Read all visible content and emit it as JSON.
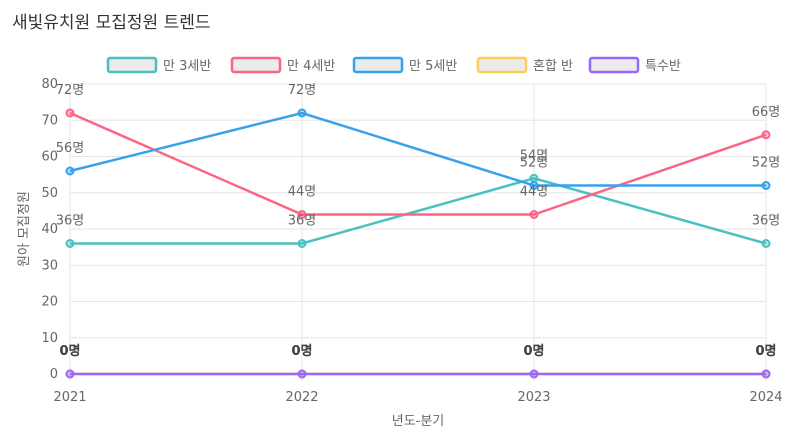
{
  "chart_data": {
    "type": "line",
    "title": "새빛유치원 모집정원 트렌드",
    "xlabel": "년도-분기",
    "ylabel": "원아 모집정원",
    "categories": [
      "2021",
      "2022",
      "2023",
      "2024"
    ],
    "ylim": [
      0,
      80
    ],
    "yticks": [
      0,
      10,
      20,
      30,
      40,
      50,
      60,
      70,
      80
    ],
    "label_suffix": "명",
    "series": [
      {
        "name": "만 3세반",
        "color": "#4bc0c0",
        "values": [
          36,
          36,
          54,
          36
        ]
      },
      {
        "name": "만 4세반",
        "color": "#ff6384",
        "values": [
          72,
          44,
          44,
          66
        ]
      },
      {
        "name": "만 5세반",
        "color": "#36a2eb",
        "values": [
          56,
          72,
          52,
          52
        ]
      },
      {
        "name": "혼합 반",
        "color": "#ffcd56",
        "values": [
          0,
          0,
          0,
          0
        ]
      },
      {
        "name": "특수반",
        "color": "#9966ff",
        "values": [
          0,
          0,
          0,
          0
        ]
      }
    ]
  }
}
